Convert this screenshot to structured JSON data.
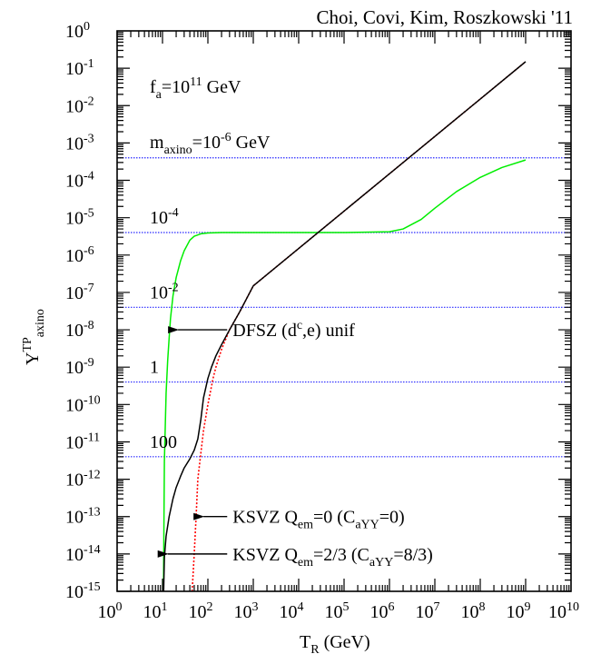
{
  "chart_data": {
    "type": "line",
    "title": "Choi, Covi, Kim, Roszkowski '11",
    "xlabel": {
      "base": "T",
      "sub": "R",
      "rest": " (GeV)"
    },
    "ylabel": {
      "base": "Y",
      "sup": "TP",
      "sub": "axino"
    },
    "x_scale": "log",
    "y_scale": "log",
    "xlim": [
      1,
      10000000000
    ],
    "ylim": [
      1e-15,
      1
    ],
    "x_ticks": [
      {
        "base": "10",
        "exp": "0"
      },
      {
        "base": "10",
        "exp": "1"
      },
      {
        "base": "10",
        "exp": "2"
      },
      {
        "base": "10",
        "exp": "3"
      },
      {
        "base": "10",
        "exp": "4"
      },
      {
        "base": "10",
        "exp": "5"
      },
      {
        "base": "10",
        "exp": "6"
      },
      {
        "base": "10",
        "exp": "7"
      },
      {
        "base": "10",
        "exp": "8"
      },
      {
        "base": "10",
        "exp": "9"
      },
      {
        "base": "10",
        "exp": "10"
      }
    ],
    "y_ticks": [
      {
        "base": "10",
        "exp": "0"
      },
      {
        "base": "10",
        "exp": "-1"
      },
      {
        "base": "10",
        "exp": "-2"
      },
      {
        "base": "10",
        "exp": "-3"
      },
      {
        "base": "10",
        "exp": "-4"
      },
      {
        "base": "10",
        "exp": "-5"
      },
      {
        "base": "10",
        "exp": "-6"
      },
      {
        "base": "10",
        "exp": "-7"
      },
      {
        "base": "10",
        "exp": "-8"
      },
      {
        "base": "10",
        "exp": "-9"
      },
      {
        "base": "10",
        "exp": "-10"
      },
      {
        "base": "10",
        "exp": "-11"
      },
      {
        "base": "10",
        "exp": "-12"
      },
      {
        "base": "10",
        "exp": "-13"
      },
      {
        "base": "10",
        "exp": "-14"
      },
      {
        "base": "10",
        "exp": "-15"
      }
    ],
    "fa_label": {
      "base": "f",
      "sub": "a",
      "mid": "=10",
      "sup": "11",
      "rest": " GeV"
    },
    "mass_label_first": {
      "base": "m",
      "sub": "axino",
      "mid": "=10",
      "sup": "-6",
      "rest": " GeV"
    },
    "mass_lines": [
      {
        "label_base": "",
        "label_exp": "",
        "y": 0.0004
      },
      {
        "label_base": "10",
        "label_exp": "-4",
        "y": 4e-06
      },
      {
        "label_base": "10",
        "label_exp": "-2",
        "y": 4e-08
      },
      {
        "label_base": "1",
        "label_exp": "",
        "y": 4e-10
      },
      {
        "label_base": "100",
        "label_exp": "",
        "y": 4e-12
      }
    ],
    "series": [
      {
        "key": "dfsz",
        "color": "#00ee00",
        "style": "solid",
        "x": [
          10.5,
          11,
          12,
          13,
          14,
          15,
          17,
          20,
          25,
          30,
          40,
          50,
          70,
          100,
          200,
          1000,
          10000,
          100000,
          1000000,
          2000000,
          5000000,
          10000000,
          30000000,
          100000000,
          300000000,
          1000000000
        ],
        "y": [
          1e-15,
          3e-12,
          2e-10,
          1.5e-09,
          6e-09,
          2e-08,
          8e-08,
          2.5e-07,
          7e-07,
          1.3e-06,
          2.5e-06,
          3.2e-06,
          3.7e-06,
          3.9e-06,
          4e-06,
          4e-06,
          4e-06,
          4e-06,
          4.2e-06,
          5e-06,
          9e-06,
          1.8e-05,
          5e-05,
          0.00012,
          0.00022,
          0.00035
        ]
      },
      {
        "key": "ksvz_qem0",
        "color": "#ff0000",
        "style": "dotted",
        "x": [
          45,
          50,
          55,
          60,
          70,
          80,
          100,
          130,
          150,
          200,
          300,
          500,
          1000,
          10000,
          100000,
          1000000,
          10000000,
          100000000,
          1000000000
        ],
        "y": [
          1e-15,
          1e-14,
          1e-13,
          1e-12,
          5e-12,
          2e-11,
          1e-10,
          5e-10,
          1e-09,
          3e-09,
          1e-08,
          3e-08,
          1.5e-07,
          1.5e-06,
          1.5e-05,
          0.00015,
          0.0015,
          0.015,
          0.15
        ]
      },
      {
        "key": "ksvz_qem23",
        "color": "#000000",
        "style": "solid",
        "x": [
          10.6,
          11,
          12,
          14,
          17,
          20,
          25,
          30,
          40,
          50,
          60,
          70,
          80,
          100,
          120,
          150,
          200,
          300,
          500,
          1000,
          10000,
          100000,
          1000000,
          10000000,
          100000000,
          1000000000
        ],
        "y": [
          1e-15,
          8e-15,
          3e-14,
          1e-13,
          3e-13,
          6e-13,
          1.2e-12,
          2e-12,
          3.5e-12,
          6e-12,
          1.2e-11,
          4e-11,
          1.5e-10,
          5e-10,
          1e-09,
          2e-09,
          4e-09,
          1e-08,
          3e-08,
          1.5e-07,
          1.5e-06,
          1.5e-05,
          0.00015,
          0.0015,
          0.015,
          0.15
        ]
      }
    ],
    "annotations": [
      {
        "key": "dfsz",
        "pre": "DFSZ (d",
        "sup": "c",
        "post": ",e) unif",
        "tail_x": 320,
        "tail_y": 1e-08,
        "head_x": 22
      },
      {
        "key": "ksvz0",
        "parts": [
          {
            "t": "KSVZ Q",
            "k": "n"
          },
          {
            "t": "em",
            "k": "sub"
          },
          {
            "t": "=0 (C",
            "k": "n"
          },
          {
            "t": "aYY",
            "k": "sub"
          },
          {
            "t": "=0)",
            "k": "n"
          }
        ],
        "tail_x": 320,
        "tail_y": 1e-13,
        "head_x": 80
      },
      {
        "key": "ksvz23",
        "parts": [
          {
            "t": "KSVZ Q",
            "k": "n"
          },
          {
            "t": "em",
            "k": "sub"
          },
          {
            "t": "=2/3 (C",
            "k": "n"
          },
          {
            "t": "aYY",
            "k": "sub"
          },
          {
            "t": "=8/3)",
            "k": "n"
          }
        ],
        "tail_x": 320,
        "tail_y": 1e-14,
        "head_x": 13
      }
    ]
  }
}
